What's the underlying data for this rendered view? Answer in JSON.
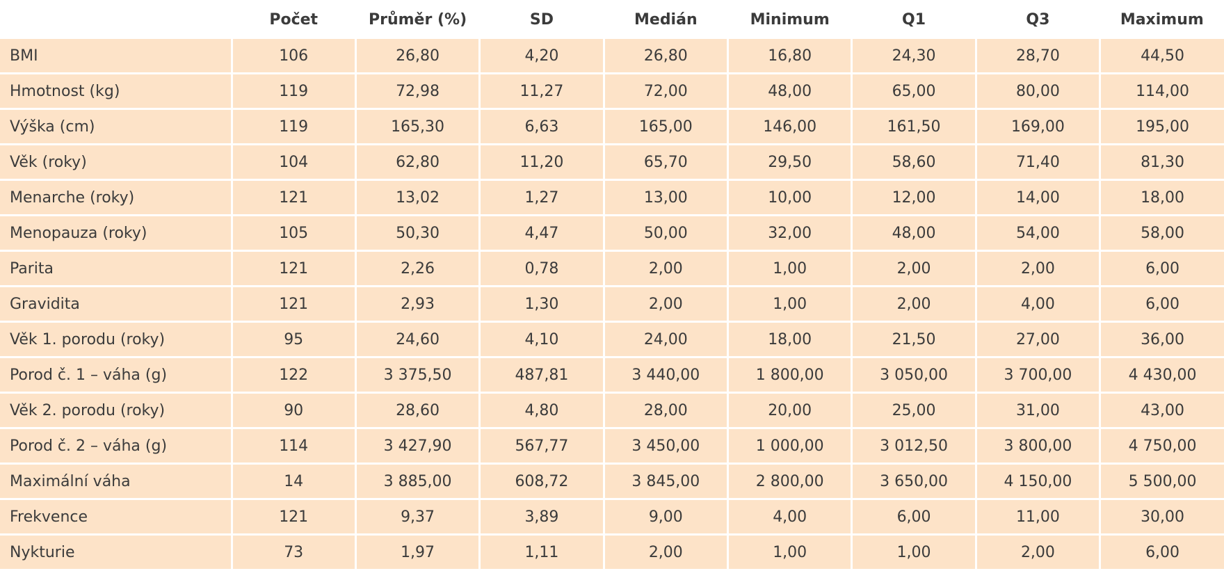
{
  "table": {
    "header": [
      "",
      "Počet",
      "Průměr (%)",
      "SD",
      "Medián",
      "Minimum",
      "Q1",
      "Q3",
      "Maximum"
    ],
    "rows": [
      [
        "BMI",
        "106",
        "26,80",
        "4,20",
        "26,80",
        "16,80",
        "24,30",
        "28,70",
        "44,50"
      ],
      [
        "Hmotnost (kg)",
        "119",
        "72,98",
        "11,27",
        "72,00",
        "48,00",
        "65,00",
        "80,00",
        "114,00"
      ],
      [
        "Výška (cm)",
        "119",
        "165,30",
        "6,63",
        "165,00",
        "146,00",
        "161,50",
        "169,00",
        "195,00"
      ],
      [
        "Věk (roky)",
        "104",
        "62,80",
        "11,20",
        "65,70",
        "29,50",
        "58,60",
        "71,40",
        "81,30"
      ],
      [
        "Menarche (roky)",
        "121",
        "13,02",
        "1,27",
        "13,00",
        "10,00",
        "12,00",
        "14,00",
        "18,00"
      ],
      [
        "Menopauza (roky)",
        "105",
        "50,30",
        "4,47",
        "50,00",
        "32,00",
        "48,00",
        "54,00",
        "58,00"
      ],
      [
        "Parita",
        "121",
        "2,26",
        "0,78",
        "2,00",
        "1,00",
        "2,00",
        "2,00",
        "6,00"
      ],
      [
        "Gravidita",
        "121",
        "2,93",
        "1,30",
        "2,00",
        "1,00",
        "2,00",
        "4,00",
        "6,00"
      ],
      [
        "Věk 1. porodu (roky)",
        "95",
        "24,60",
        "4,10",
        "24,00",
        "18,00",
        "21,50",
        "27,00",
        "36,00"
      ],
      [
        "Porod č. 1 – váha (g)",
        "122",
        "3 375,50",
        "487,81",
        "3 440,00",
        "1 800,00",
        "3 050,00",
        "3 700,00",
        "4 430,00"
      ],
      [
        "Věk 2. porodu (roky)",
        "90",
        "28,60",
        "4,80",
        "28,00",
        "20,00",
        "25,00",
        "31,00",
        "43,00"
      ],
      [
        "Porod č. 2 – váha (g)",
        "114",
        "3 427,90",
        "567,77",
        "3 450,00",
        "1 000,00",
        "3 012,50",
        "3 800,00",
        "4 750,00"
      ],
      [
        "Maximální váha",
        "14",
        "3 885,00",
        "608,72",
        "3 845,00",
        "2 800,00",
        "3 650,00",
        "4 150,00",
        "5 500,00"
      ],
      [
        "Frekvence",
        "121",
        "9,37",
        "3,89",
        "9,00",
        "4,00",
        "6,00",
        "11,00",
        "30,00"
      ],
      [
        "Nykturie",
        "73",
        "1,97",
        "1,11",
        "2,00",
        "1,00",
        "1,00",
        "2,00",
        "6,00"
      ]
    ]
  }
}
